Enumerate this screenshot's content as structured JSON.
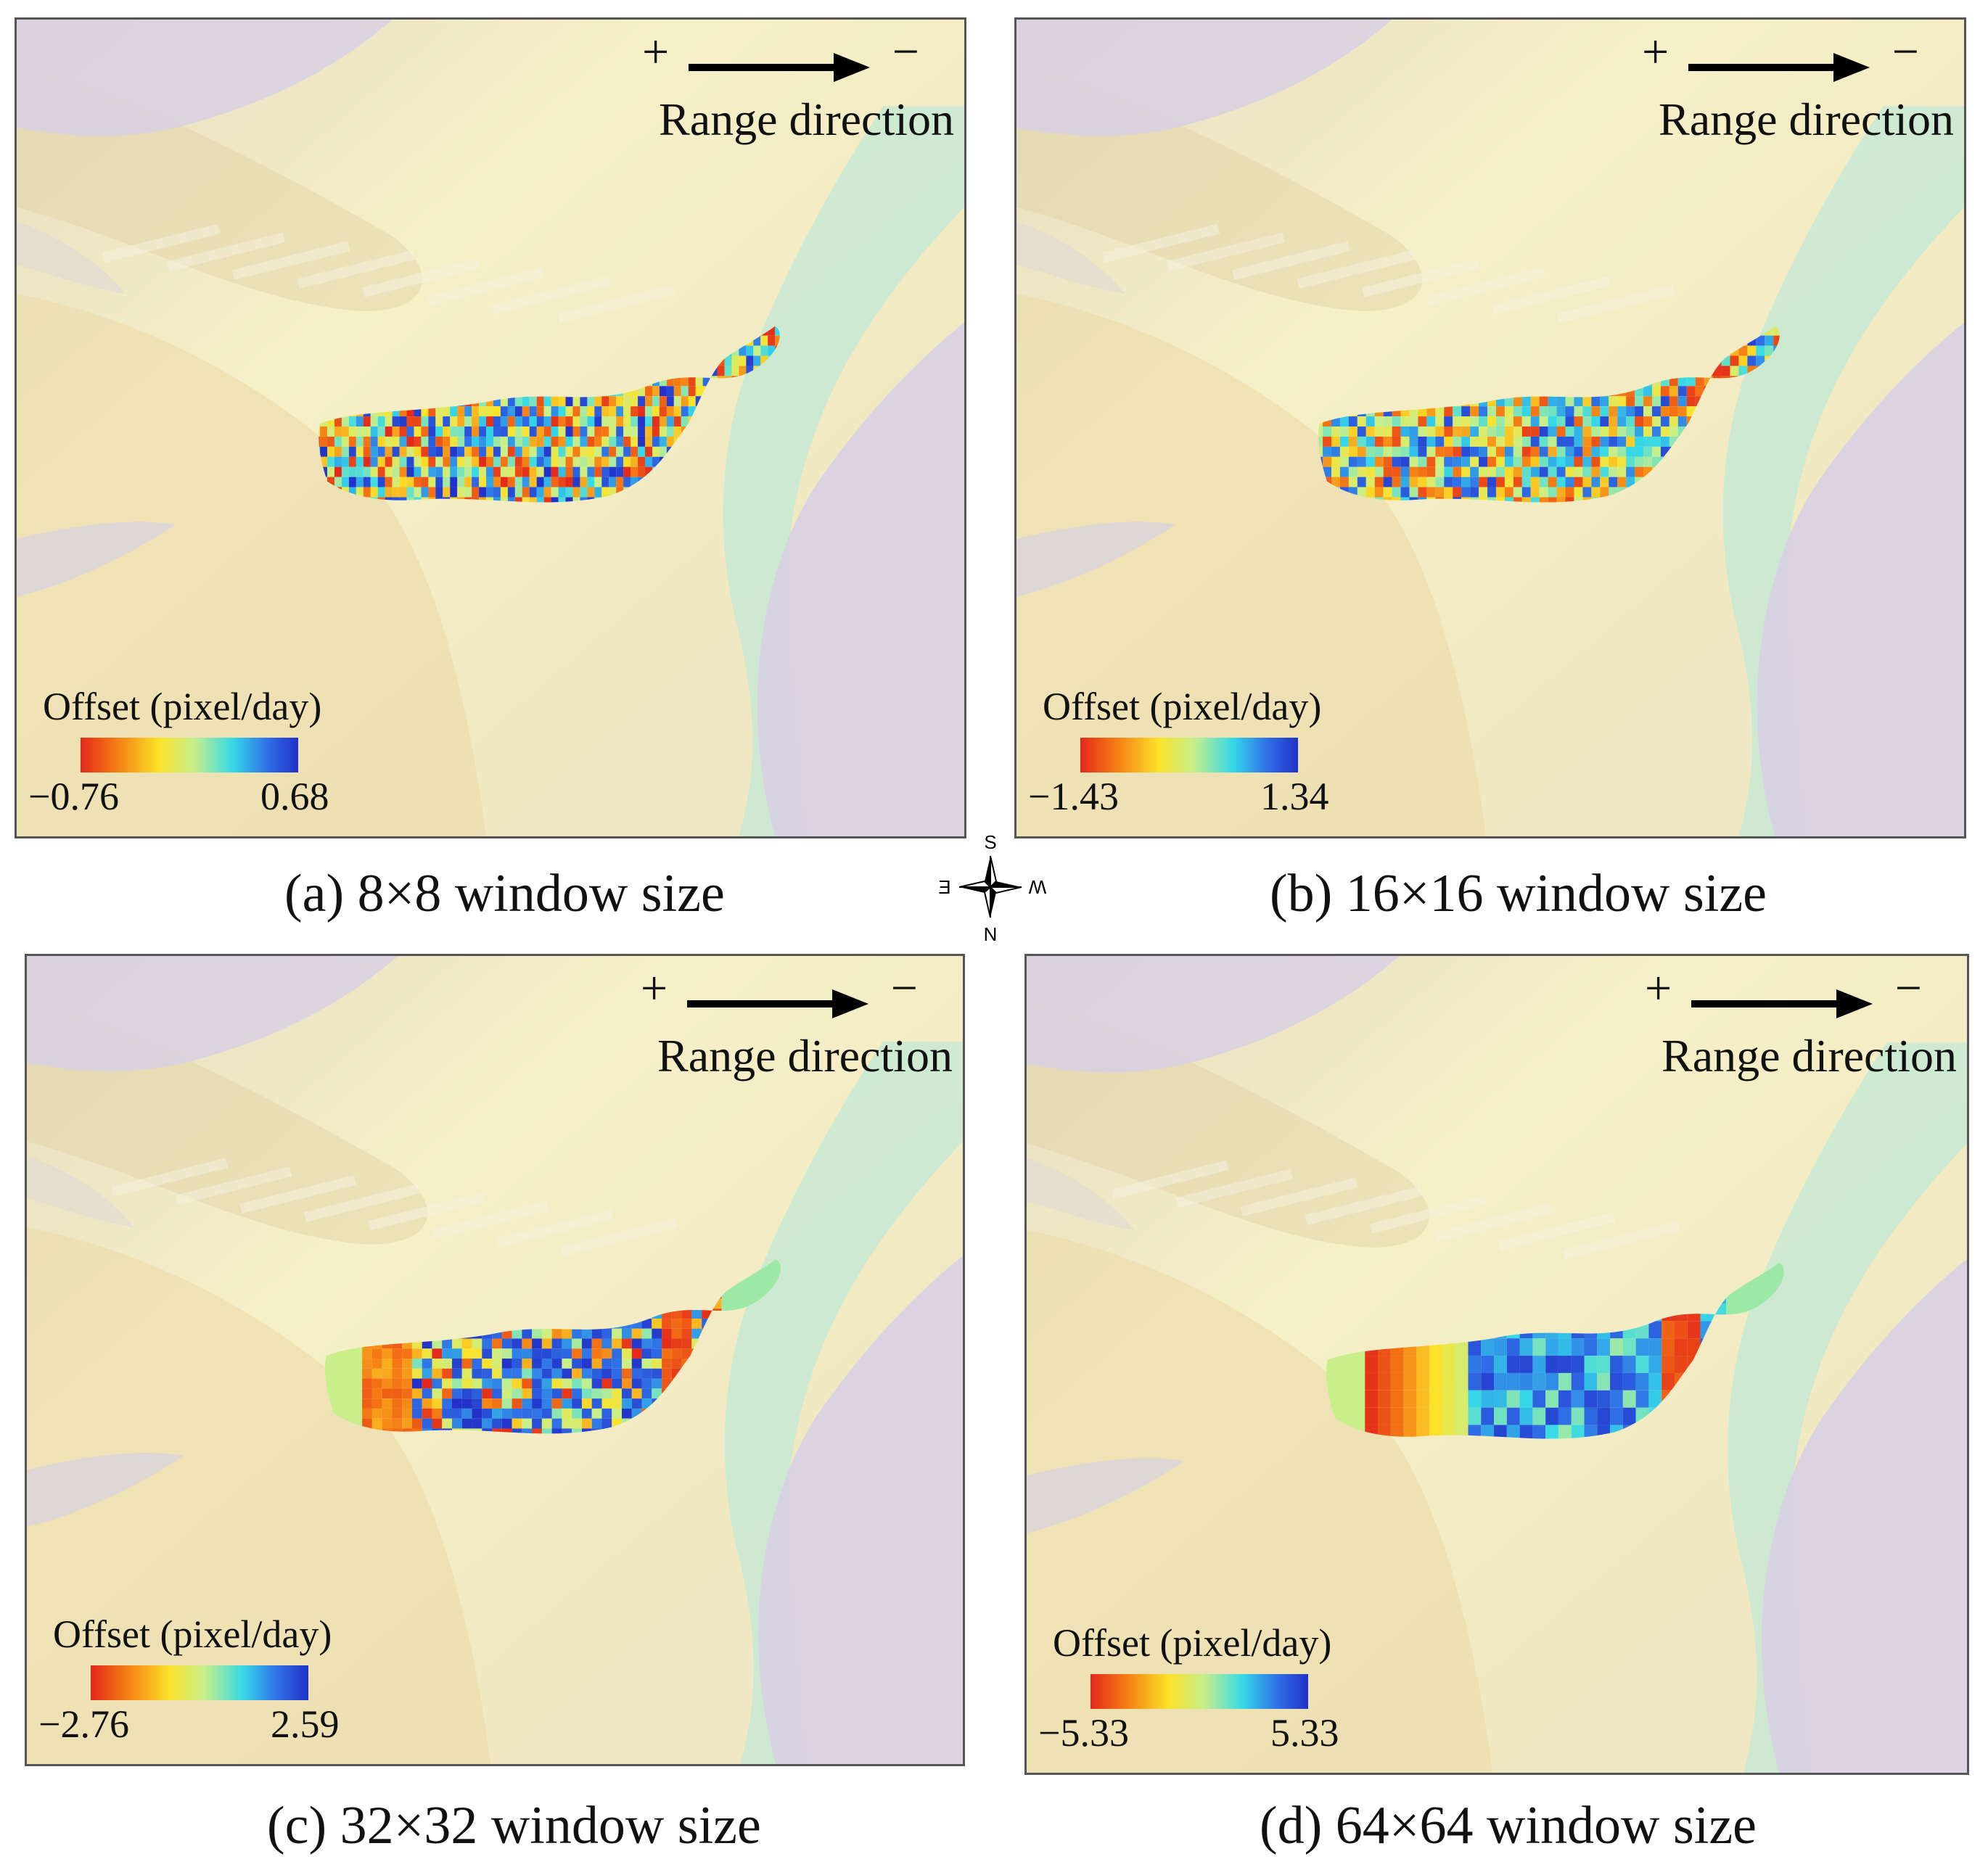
{
  "range_direction": {
    "plus": "+",
    "minus": "−",
    "label": "Range direction"
  },
  "legend_title": "Offset  (pixel/day)",
  "compass": {
    "s": "S",
    "n": "N",
    "e": "E",
    "w": "W"
  },
  "colors": {
    "colorbar": [
      "#e3281b",
      "#f57a14",
      "#fbe22a",
      "#c8ef8a",
      "#35d9e8",
      "#2f6fe6",
      "#2230c8"
    ],
    "terrain_light": "#f6f0c8",
    "terrain_tan": "#e9d9a8",
    "terrain_snow": "#d8d0e4",
    "river": "#bfe8d8"
  },
  "panels": [
    {
      "caption": "(a) 8×8 window size",
      "min": "−0.76",
      "max": "0.68",
      "pattern": "noise"
    },
    {
      "caption": "(b) 16×16 window size",
      "min": "−1.43",
      "max": "1.34",
      "pattern": "noise-east-red"
    },
    {
      "caption": "(c) 32×32 window size",
      "min": "−2.76",
      "max": "2.59",
      "pattern": "banded"
    },
    {
      "caption": "(d) 64×64 window size",
      "min": "−5.33",
      "max": "5.33",
      "pattern": "smooth"
    }
  ]
}
